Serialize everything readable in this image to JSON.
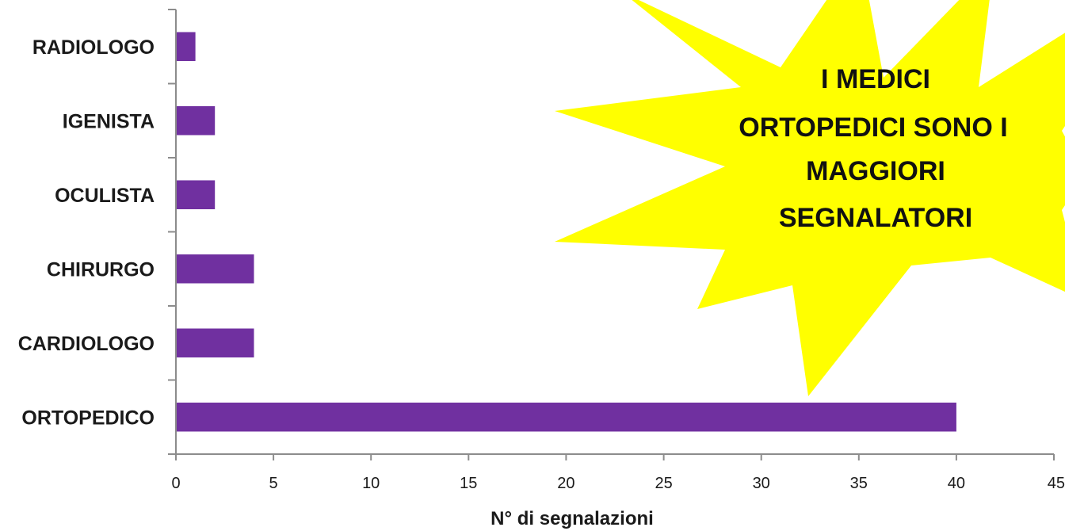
{
  "colors": {
    "bar": "#7030a0",
    "axis": "#8c8c8c",
    "callout_fill": "#ffff00",
    "callout_text": "#111111"
  },
  "chart_data": {
    "type": "bar",
    "orientation": "horizontal",
    "categories": [
      "RADIOLOGO",
      "IGENISTA",
      "OCULISTA",
      "CHIRURGO",
      "CARDIOLOGO",
      "ORTOPEDICO"
    ],
    "values": [
      1,
      2,
      2,
      4,
      4,
      40
    ],
    "xlabel": "N° di segnalazioni",
    "ylabel": "",
    "xlim": [
      0,
      45
    ],
    "xticks": [
      "0",
      "5",
      "10",
      "15",
      "20",
      "25",
      "30",
      "35",
      "40",
      "45"
    ],
    "grid": false,
    "legend": "none",
    "annotation": {
      "shape": "starburst",
      "lines": [
        "I MEDICI",
        "ORTOPEDICI SONO I",
        "MAGGIORI",
        "SEGNALATORI"
      ]
    }
  }
}
